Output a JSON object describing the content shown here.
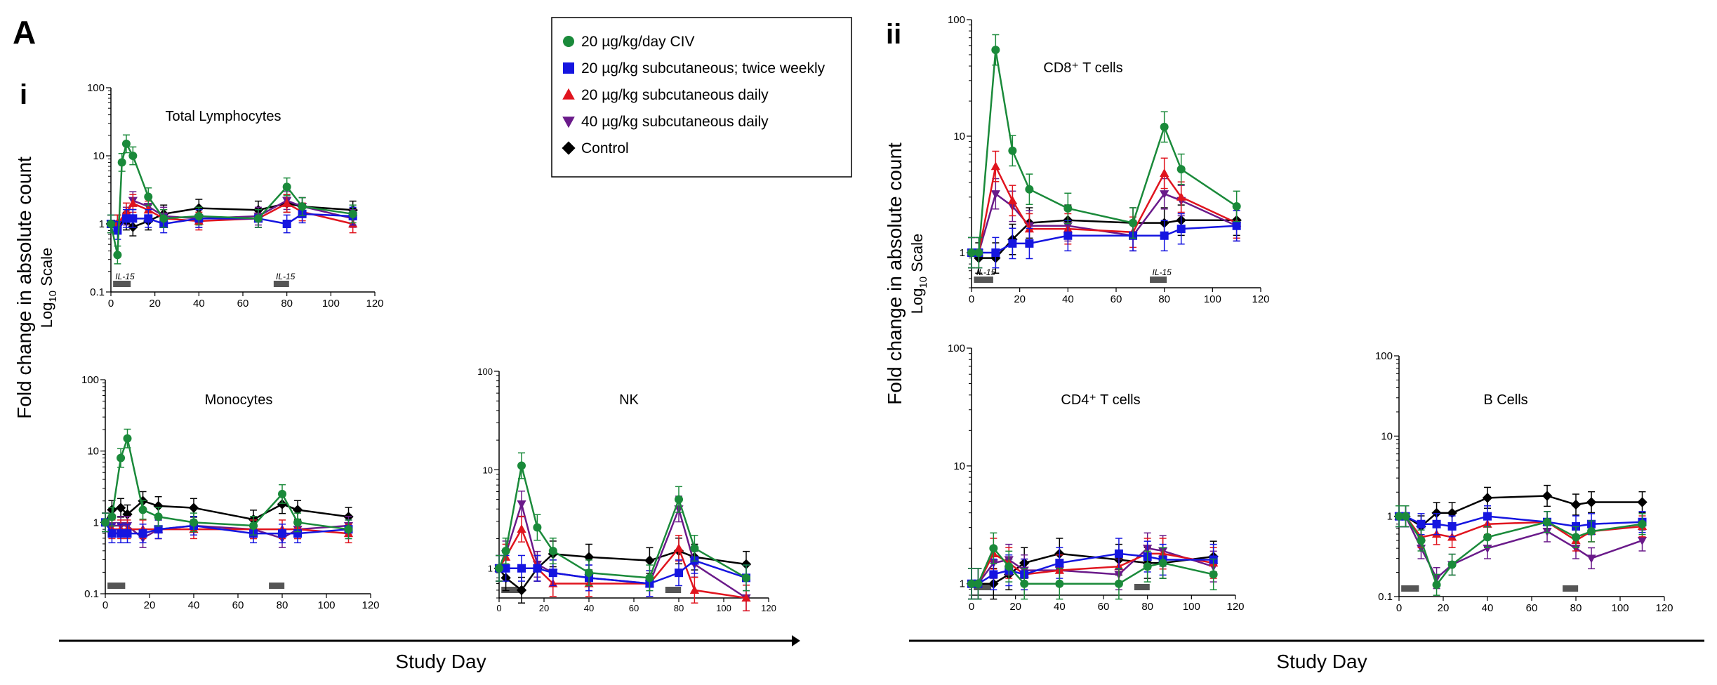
{
  "figure": {
    "panel_letter": "A",
    "section_i": "i",
    "section_ii": "ii",
    "ylabel_main": "Fold change in absolute count",
    "ylabel_sub_base": "Log",
    "ylabel_sub_index": "10",
    "ylabel_sub_rest": " Scale",
    "xlabel": "Study Day"
  },
  "legend": {
    "entries": [
      {
        "label": "20 µg/kg/day  CIV",
        "color": "#1a8a3a",
        "marker": "circle"
      },
      {
        "label": "20 µg/kg subcutaneous; twice weekly",
        "color": "#1515e0",
        "marker": "square"
      },
      {
        "label": "20 µg/kg subcutaneous daily",
        "color": "#e0141e",
        "marker": "triangle"
      },
      {
        "label": "40 µg/kg subcutaneous daily",
        "color": "#6a1a8a",
        "marker": "triangle-down"
      },
      {
        "label": "Control",
        "color": "#000000",
        "marker": "diamond"
      }
    ]
  },
  "chart_data": [
    {
      "type": "line",
      "title": "Total Lymphocytes",
      "x_ticks": [
        "0",
        "20",
        "40",
        "60",
        "80",
        "100",
        "120"
      ],
      "y_ticks": [
        "0.1",
        "1",
        "10",
        "100"
      ],
      "xlim": [
        0,
        120
      ],
      "ylim": [
        0.1,
        100
      ],
      "y_scale": "log",
      "annotations": [
        "IL-15",
        "IL-15"
      ],
      "dosing_windows": [
        [
          0,
          9
        ],
        [
          73,
          81
        ]
      ],
      "series": [
        {
          "x": [
            0,
            3,
            5,
            7,
            10,
            17,
            24,
            40,
            67,
            80,
            87,
            110
          ],
          "y": [
            1,
            0.35,
            8,
            15,
            10,
            2.5,
            1.2,
            1.3,
            1.2,
            3.5,
            1.8,
            1.4
          ]
        },
        {
          "x": [
            0,
            3,
            7,
            10,
            17,
            24,
            40,
            67,
            80,
            87,
            110
          ],
          "y": [
            1,
            0.8,
            1.2,
            1.2,
            1.2,
            1.0,
            1.2,
            1.2,
            1.0,
            1.4,
            1.3
          ]
        },
        {
          "x": [
            0,
            3,
            7,
            10,
            17,
            24,
            40,
            67,
            80,
            87,
            110
          ],
          "y": [
            1,
            1.0,
            1.5,
            2.0,
            1.6,
            1.2,
            1.1,
            1.2,
            2.0,
            1.5,
            1.0
          ]
        },
        {
          "x": [
            0,
            3,
            7,
            10,
            17,
            24,
            40,
            67,
            80,
            87,
            110
          ],
          "y": [
            1,
            1.0,
            1.3,
            2.2,
            1.8,
            1.3,
            1.2,
            1.3,
            2.2,
            1.8,
            1.2
          ]
        },
        {
          "x": [
            0,
            3,
            7,
            10,
            17,
            24,
            40,
            67,
            80,
            87,
            110
          ],
          "y": [
            1,
            1.0,
            1.1,
            0.9,
            1.1,
            1.4,
            1.7,
            1.6,
            2.0,
            1.8,
            1.6
          ]
        }
      ]
    },
    {
      "type": "line",
      "title": "Monocytes",
      "x_ticks": [
        "0",
        "20",
        "40",
        "60",
        "80",
        "100",
        "120"
      ],
      "y_ticks": [
        "0.1",
        "1",
        "10",
        "100"
      ],
      "xlim": [
        0,
        120
      ],
      "ylim": [
        0.1,
        100
      ],
      "y_scale": "log",
      "dosing_windows": [
        [
          0,
          9
        ],
        [
          73,
          81
        ]
      ],
      "series": [
        {
          "x": [
            0,
            3,
            7,
            10,
            17,
            24,
            40,
            67,
            80,
            87,
            110
          ],
          "y": [
            1,
            1.2,
            8,
            15,
            1.5,
            1.2,
            1.0,
            0.9,
            2.5,
            1.0,
            0.8
          ]
        },
        {
          "x": [
            0,
            3,
            7,
            10,
            17,
            24,
            40,
            67,
            80,
            87,
            110
          ],
          "y": [
            1,
            0.7,
            0.7,
            0.7,
            0.7,
            0.8,
            0.9,
            0.7,
            0.7,
            0.7,
            0.8
          ]
        },
        {
          "x": [
            0,
            3,
            7,
            10,
            17,
            24,
            40,
            67,
            80,
            87,
            110
          ],
          "y": [
            1,
            0.8,
            0.8,
            0.8,
            0.8,
            0.8,
            0.8,
            0.8,
            0.8,
            0.8,
            0.7
          ]
        },
        {
          "x": [
            0,
            3,
            7,
            10,
            17,
            24,
            40,
            67,
            80,
            87,
            110
          ],
          "y": [
            1,
            0.9,
            0.9,
            0.9,
            0.6,
            0.8,
            0.9,
            0.8,
            0.6,
            0.8,
            0.9
          ]
        },
        {
          "x": [
            0,
            3,
            7,
            10,
            17,
            24,
            40,
            67,
            80,
            87,
            110
          ],
          "y": [
            1,
            1.5,
            1.6,
            1.3,
            2.0,
            1.7,
            1.6,
            1.1,
            1.8,
            1.5,
            1.2
          ]
        }
      ]
    },
    {
      "type": "line",
      "title": "NK",
      "x_ticks": [
        "0",
        "20",
        "40",
        "60",
        "80",
        "100",
        "120"
      ],
      "y_ticks": [
        "1",
        "10",
        "100"
      ],
      "xlim": [
        0,
        120
      ],
      "ylim": [
        0.5,
        100
      ],
      "y_scale": "log",
      "dosing_windows": [
        [
          0,
          9
        ],
        [
          73,
          81
        ]
      ],
      "series": [
        {
          "x": [
            0,
            3,
            10,
            17,
            24,
            40,
            67,
            80,
            87,
            110
          ],
          "y": [
            1,
            1.5,
            11,
            2.6,
            1.5,
            0.9,
            0.8,
            5,
            1.6,
            0.8
          ]
        },
        {
          "x": [
            0,
            3,
            10,
            17,
            24,
            40,
            67,
            80,
            87,
            110
          ],
          "y": [
            1,
            1.0,
            1.0,
            1.0,
            0.9,
            0.8,
            0.7,
            0.9,
            1.2,
            0.8
          ]
        },
        {
          "x": [
            0,
            3,
            10,
            17,
            24,
            40,
            67,
            80,
            87,
            110
          ],
          "y": [
            1,
            1.3,
            2.5,
            1.0,
            0.7,
            0.7,
            0.7,
            1.6,
            0.6,
            0.5
          ]
        },
        {
          "x": [
            0,
            3,
            10,
            17,
            24,
            40,
            67,
            80,
            87,
            110
          ],
          "y": [
            1,
            1.4,
            4.5,
            1.1,
            0.9,
            0.8,
            0.7,
            4,
            1.1,
            0.5
          ]
        },
        {
          "x": [
            0,
            3,
            10,
            17,
            24,
            40,
            67,
            80,
            87,
            110
          ],
          "y": [
            1,
            0.8,
            0.6,
            1.0,
            1.4,
            1.3,
            1.2,
            1.5,
            1.3,
            1.1
          ]
        }
      ]
    },
    {
      "type": "line",
      "title": "CD8⁺ T cells",
      "x_ticks": [
        "0",
        "20",
        "40",
        "60",
        "80",
        "100",
        "120"
      ],
      "y_ticks": [
        "1",
        "10",
        "100"
      ],
      "xlim": [
        0,
        120
      ],
      "ylim": [
        0.5,
        100
      ],
      "y_scale": "log",
      "annotations": [
        "IL-15",
        "IL-15"
      ],
      "dosing_windows": [
        [
          0,
          9
        ],
        [
          73,
          81
        ]
      ],
      "series": [
        {
          "x": [
            0,
            3,
            10,
            17,
            24,
            40,
            67,
            80,
            87,
            110
          ],
          "y": [
            1,
            1.0,
            55,
            7.5,
            3.5,
            2.4,
            1.8,
            12,
            5.2,
            2.5
          ]
        },
        {
          "x": [
            0,
            3,
            10,
            17,
            24,
            40,
            67,
            80,
            87,
            110
          ],
          "y": [
            1,
            1.0,
            1.0,
            1.2,
            1.2,
            1.4,
            1.4,
            1.4,
            1.6,
            1.7
          ]
        },
        {
          "x": [
            0,
            3,
            10,
            17,
            24,
            40,
            67,
            80,
            87,
            110
          ],
          "y": [
            1,
            1.0,
            5.5,
            2.8,
            1.6,
            1.6,
            1.5,
            4.8,
            3.0,
            1.8
          ]
        },
        {
          "x": [
            0,
            3,
            10,
            17,
            24,
            40,
            67,
            80,
            87,
            110
          ],
          "y": [
            1,
            1.0,
            3.2,
            2.5,
            1.7,
            1.7,
            1.4,
            3.2,
            2.8,
            1.7
          ]
        },
        {
          "x": [
            0,
            3,
            10,
            17,
            24,
            40,
            67,
            80,
            87,
            110
          ],
          "y": [
            1,
            0.9,
            0.9,
            1.3,
            1.8,
            1.9,
            1.8,
            1.8,
            1.9,
            1.9
          ]
        }
      ]
    },
    {
      "type": "line",
      "title": "CD4⁺ T cells",
      "x_ticks": [
        "0",
        "20",
        "40",
        "60",
        "80",
        "100",
        "120"
      ],
      "y_ticks": [
        "1",
        "10",
        "100"
      ],
      "xlim": [
        0,
        120
      ],
      "ylim": [
        0.8,
        100
      ],
      "y_scale": "log",
      "dosing_windows": [
        [
          0,
          9
        ],
        [
          73,
          81
        ]
      ],
      "series": [
        {
          "x": [
            0,
            3,
            10,
            17,
            24,
            40,
            67,
            80,
            87,
            110
          ],
          "y": [
            1,
            1.0,
            2.0,
            1.4,
            1.0,
            1.0,
            1.0,
            1.4,
            1.5,
            1.2
          ]
        },
        {
          "x": [
            0,
            3,
            10,
            17,
            24,
            40,
            67,
            80,
            87,
            110
          ],
          "y": [
            1,
            1.0,
            1.2,
            1.3,
            1.2,
            1.5,
            1.8,
            1.7,
            1.6,
            1.6
          ]
        },
        {
          "x": [
            0,
            3,
            10,
            17,
            24,
            40,
            67,
            80,
            87,
            110
          ],
          "y": [
            1,
            1.0,
            1.8,
            1.5,
            1.2,
            1.3,
            1.4,
            1.8,
            1.8,
            1.5
          ]
        },
        {
          "x": [
            0,
            3,
            10,
            17,
            24,
            40,
            67,
            80,
            87,
            110
          ],
          "y": [
            1,
            1.0,
            1.5,
            1.6,
            1.3,
            1.3,
            1.2,
            2.0,
            1.9,
            1.4
          ]
        },
        {
          "x": [
            0,
            3,
            10,
            17,
            24,
            40,
            67,
            80,
            87,
            110
          ],
          "y": [
            1,
            1.0,
            1.0,
            1.2,
            1.5,
            1.8,
            1.6,
            1.5,
            1.5,
            1.7
          ]
        }
      ]
    },
    {
      "type": "line",
      "title": "B Cells",
      "x_ticks": [
        "0",
        "20",
        "40",
        "60",
        "80",
        "100",
        "120"
      ],
      "y_ticks": [
        "0.1",
        "1",
        "10",
        "100"
      ],
      "xlim": [
        0,
        120
      ],
      "ylim": [
        0.1,
        100
      ],
      "y_scale": "log",
      "dosing_windows": [
        [
          0,
          9
        ],
        [
          73,
          81
        ]
      ],
      "series": [
        {
          "x": [
            0,
            3,
            10,
            17,
            24,
            40,
            67,
            80,
            87,
            110
          ],
          "y": [
            1,
            1.0,
            0.5,
            0.14,
            0.25,
            0.55,
            0.85,
            0.55,
            0.65,
            0.8
          ]
        },
        {
          "x": [
            0,
            3,
            10,
            17,
            24,
            40,
            67,
            80,
            87,
            110
          ],
          "y": [
            1,
            1.0,
            0.8,
            0.8,
            0.75,
            1.0,
            0.85,
            0.75,
            0.8,
            0.85
          ]
        },
        {
          "x": [
            0,
            3,
            10,
            17,
            24,
            40,
            67,
            80,
            87,
            110
          ],
          "y": [
            1,
            1.0,
            0.55,
            0.6,
            0.55,
            0.8,
            0.85,
            0.5,
            0.65,
            0.75
          ]
        },
        {
          "x": [
            0,
            3,
            10,
            17,
            24,
            40,
            67,
            80,
            87,
            110
          ],
          "y": [
            1,
            1.0,
            0.4,
            0.17,
            0.25,
            0.4,
            0.65,
            0.4,
            0.3,
            0.5
          ]
        },
        {
          "x": [
            0,
            3,
            10,
            17,
            24,
            40,
            67,
            80,
            87,
            110
          ],
          "y": [
            1,
            1.0,
            0.75,
            1.1,
            1.1,
            1.7,
            1.8,
            1.4,
            1.5,
            1.5
          ]
        }
      ]
    }
  ]
}
